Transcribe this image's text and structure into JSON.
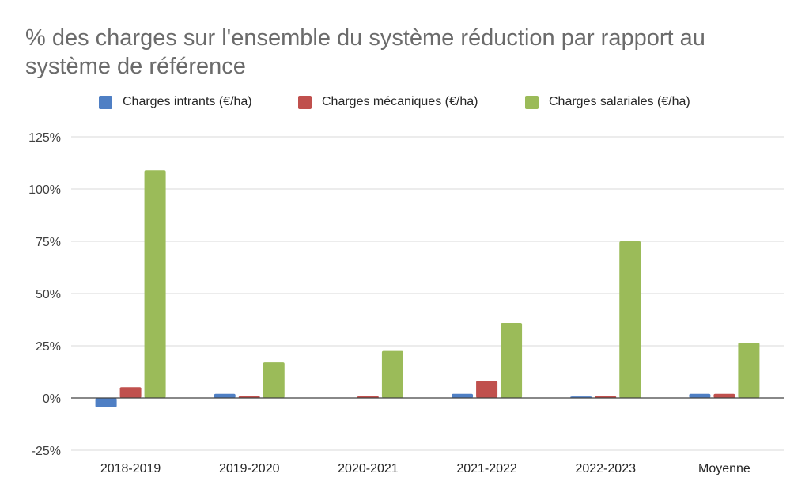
{
  "chart_data": {
    "type": "bar",
    "title": "% des charges sur l'ensemble du système réduction par rapport au système de référence",
    "categories": [
      "2018-2019",
      "2019-2020",
      "2020-2021",
      "2021-2022",
      "2022-2023",
      "Moyenne"
    ],
    "series": [
      {
        "name": "Charges intrants (€/ha)",
        "color": "#4f7fc4",
        "values": [
          -4.5,
          2,
          0,
          2,
          0.7,
          2
        ]
      },
      {
        "name": "Charges mécaniques (€/ha)",
        "color": "#c0504d",
        "values": [
          5.2,
          0.8,
          0.8,
          8.3,
          0.8,
          2
        ]
      },
      {
        "name": "Charges salariales (€/ha)",
        "color": "#9bbb59",
        "values": [
          109,
          17,
          22.5,
          36,
          75,
          26.5
        ]
      }
    ],
    "ylim": [
      -25,
      125
    ],
    "yticks": [
      -25,
      0,
      25,
      50,
      75,
      100,
      125
    ],
    "ytick_labels": [
      "-25%",
      "0%",
      "25%",
      "50%",
      "75%",
      "100%",
      "125%"
    ],
    "grid": true,
    "legend_position": "top"
  }
}
